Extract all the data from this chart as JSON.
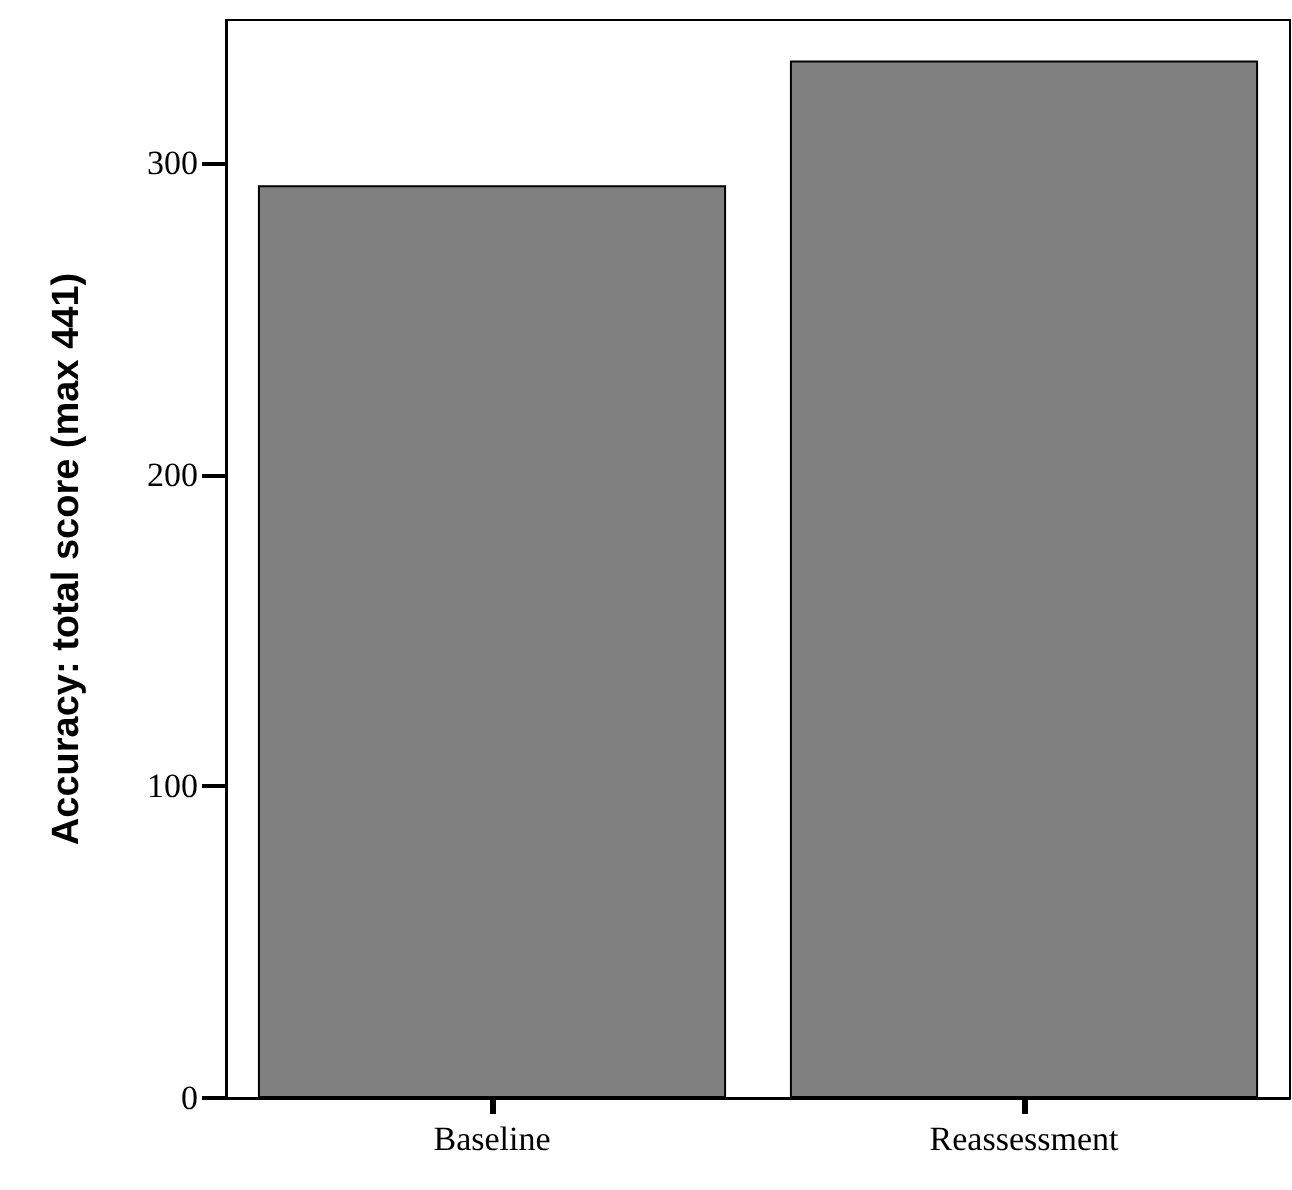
{
  "chart_data": {
    "type": "bar",
    "ylabel": "Accuracy: total score (max 441)",
    "categories": [
      "Baseline",
      "Reassessment"
    ],
    "values": [
      293,
      333
    ],
    "color": "#808080",
    "ylim": [
      0,
      346
    ],
    "yticks": [
      0,
      100,
      200,
      300
    ],
    "grid": false
  }
}
